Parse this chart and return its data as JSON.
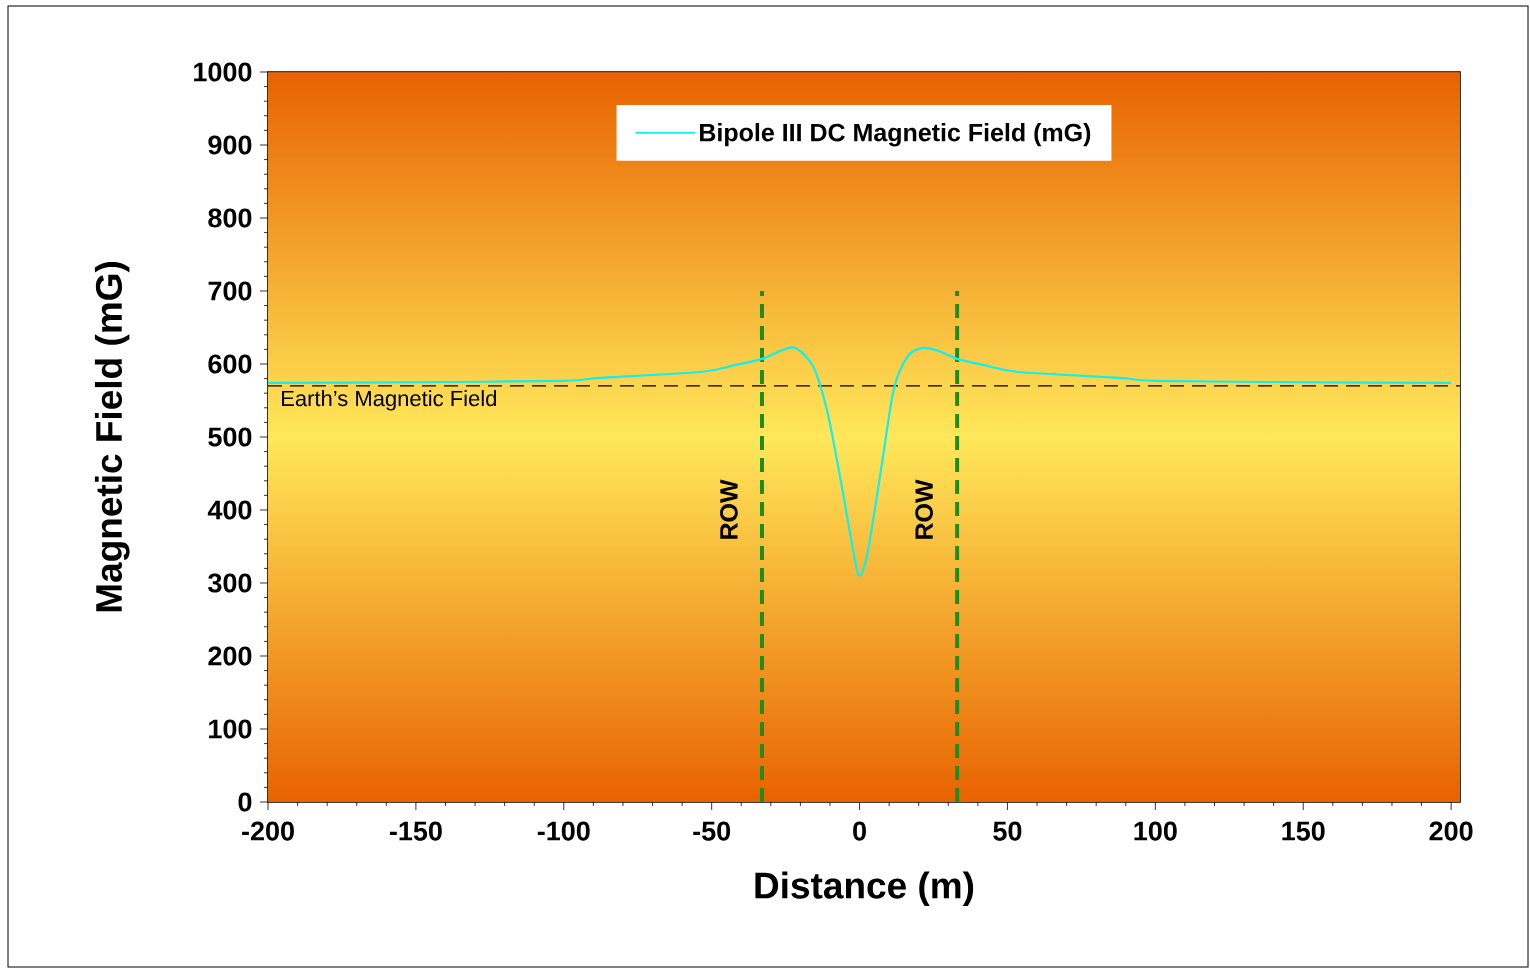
{
  "chart_data": {
    "type": "line",
    "xlabel": "Distance   (m)",
    "ylabel": "Magnetic Field  (mG)",
    "x": [
      -200,
      -150,
      -100,
      -87.6,
      -53.8,
      -42.6,
      -33,
      -26.7,
      -21.7,
      -15.6,
      -10.8,
      -6.4,
      -2,
      0,
      2.7,
      7.1,
      11.5,
      16.2,
      21.3,
      26.7,
      33,
      42.6,
      53.8,
      87.6,
      100,
      150,
      200
    ],
    "series": [
      {
        "name": "Bipole III DC Magnetic Field (mG)",
        "color": "#10f0f0",
        "values": [
          574,
          575,
          577,
          581,
          589,
          598,
          607,
          618,
          622,
          596,
          533,
          441,
          341,
          310,
          341,
          451,
          564,
          610,
          622,
          618,
          607,
          598,
          589,
          581,
          577,
          575,
          574
        ]
      }
    ],
    "xlim": [
      -200,
      203
    ],
    "ylim": [
      0,
      1000
    ],
    "xticks": [
      -200,
      -150,
      -100,
      -50,
      0,
      50,
      100,
      150,
      200
    ],
    "yticks": [
      0,
      100,
      200,
      300,
      400,
      500,
      600,
      700,
      800,
      900,
      1000
    ],
    "ref_lines": [
      {
        "axis": "y",
        "value": 570,
        "label": "Earth’s Magnetic Field",
        "color": "#000000",
        "line_style": "dashed"
      },
      {
        "axis": "x",
        "value": -33,
        "label": "ROW",
        "color": "#1e8c1e",
        "line_style": "dashed"
      },
      {
        "axis": "x",
        "value": 33,
        "label": "ROW",
        "color": "#1e8c1e",
        "line_style": "dashed"
      }
    ],
    "legend": "top",
    "marker": "none",
    "line_style": "solid"
  }
}
